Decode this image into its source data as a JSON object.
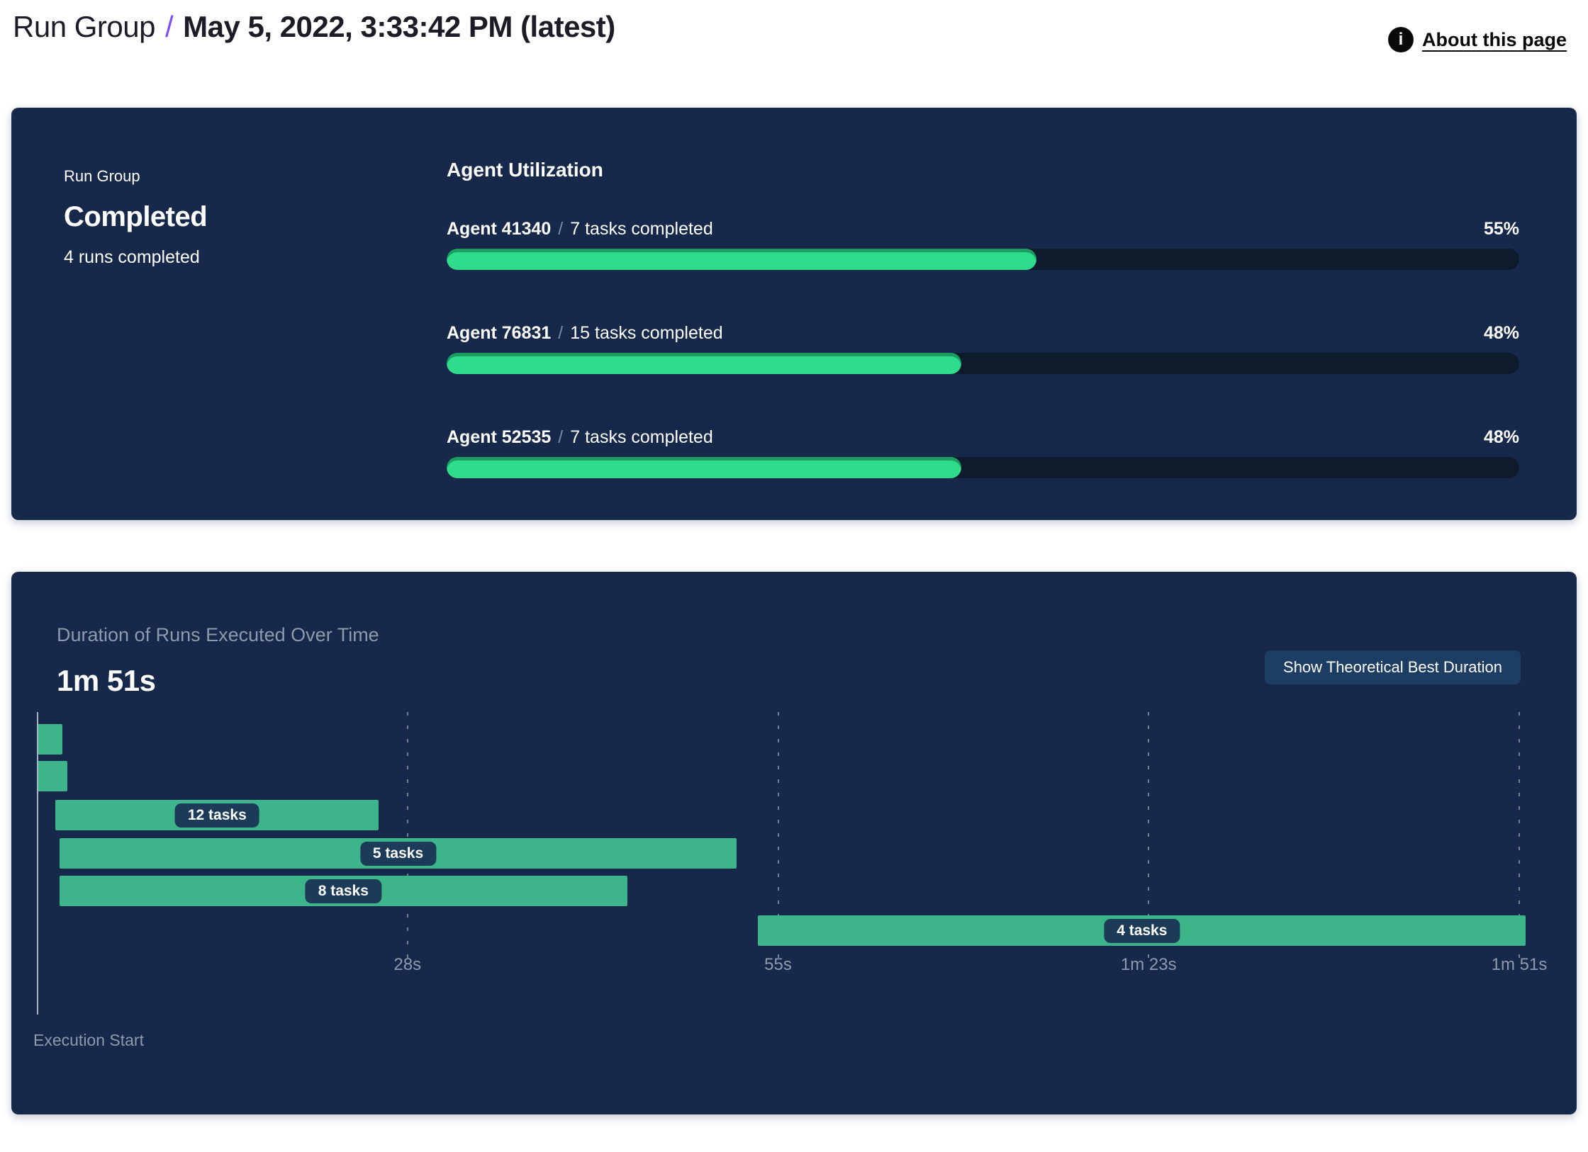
{
  "header": {
    "breadcrumb": "Run Group",
    "separator": "/",
    "title": "May 5, 2022, 3:33:42 PM (latest)",
    "about": {
      "label": "About this page",
      "icon": "info-icon",
      "icon_glyph": "i"
    }
  },
  "status_card": {
    "eyebrow": "Run Group",
    "status": "Completed",
    "runs_summary": "4 runs completed",
    "utilization": {
      "title": "Agent Utilization",
      "separator": "/",
      "agents": [
        {
          "name": "Agent 41340",
          "tasks_completed": "7 tasks completed",
          "percent": 55,
          "percent_label": "55%"
        },
        {
          "name": "Agent 76831",
          "tasks_completed": "15 tasks completed",
          "percent": 48,
          "percent_label": "48%"
        },
        {
          "name": "Agent 52535",
          "tasks_completed": "7 tasks completed",
          "percent": 48,
          "percent_label": "48%"
        }
      ]
    }
  },
  "duration_card": {
    "title": "Duration of Runs Executed Over Time",
    "total_duration": "1m 51s",
    "button_label": "Show Theoretical Best Duration",
    "footer_label": "Execution Start"
  },
  "chart_data": [
    {
      "type": "bar",
      "orientation": "horizontal",
      "title": "Agent Utilization",
      "categories": [
        "Agent 41340",
        "Agent 76831",
        "Agent 52535"
      ],
      "values": [
        55,
        48,
        48
      ],
      "annotations": [
        "7 tasks completed",
        "15 tasks completed",
        "7 tasks completed"
      ],
      "unit": "percent",
      "xlim": [
        0,
        100
      ],
      "grid": false,
      "legend": false
    },
    {
      "type": "bar",
      "subtype": "gantt-timeline",
      "title": "Duration of Runs Executed Over Time",
      "x_unit": "seconds",
      "xlim": [
        0,
        111
      ],
      "total_label": "1m 51s",
      "baseline_label": "Execution Start",
      "ticks": [
        {
          "label": "28s",
          "s": 27.75
        },
        {
          "label": "55s",
          "s": 55.5
        },
        {
          "label": "1m 23s",
          "s": 83.25
        },
        {
          "label": "1m 51s",
          "s": 111
        }
      ],
      "runs": [
        {
          "label": "",
          "start_s": 0,
          "end_s": 1.9
        },
        {
          "label": "",
          "start_s": 0,
          "end_s": 2.3
        },
        {
          "label": "12 tasks",
          "start_s": 1.4,
          "end_s": 25.6
        },
        {
          "label": "5 tasks",
          "start_s": 1.7,
          "end_s": 52.4
        },
        {
          "label": "8 tasks",
          "start_s": 1.7,
          "end_s": 44.2
        },
        {
          "label": "4 tasks",
          "start_s": 54,
          "end_s": 111.5
        }
      ],
      "grid": true,
      "legend": false
    }
  ],
  "colors": {
    "card_bg": "#16294A",
    "progress_fill": "#2EDC8B",
    "progress_track": "#0E1B2D",
    "gantt_bar": "#3DB489",
    "pill_bg": "#1C3B58",
    "button_bg": "#1E3D62",
    "muted_text": "#8E99AB",
    "accent_purple": "#7C4DFF",
    "header_text": "#1D1B26"
  }
}
